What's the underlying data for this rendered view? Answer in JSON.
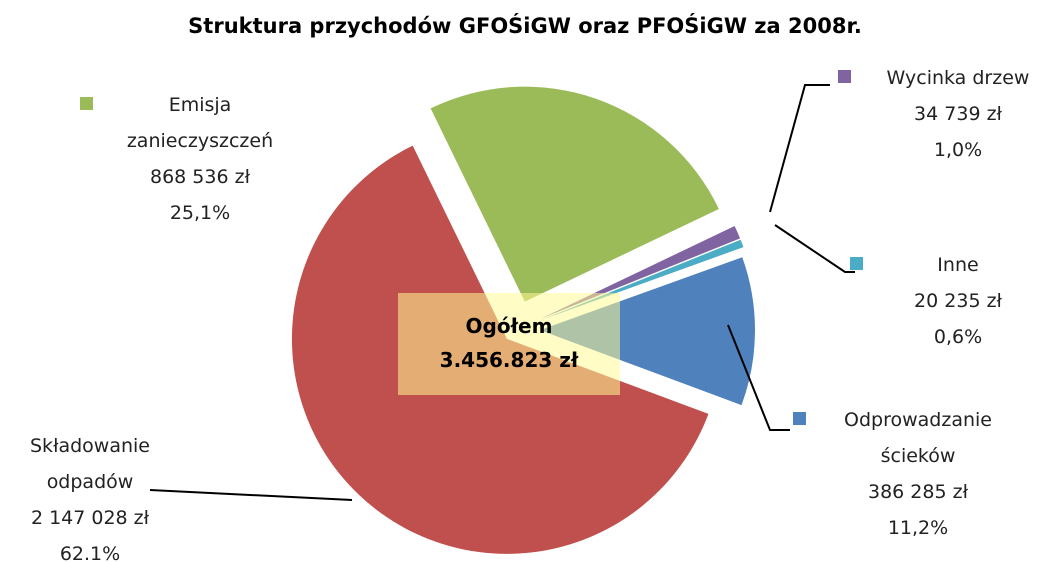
{
  "chart_data": {
    "type": "pie",
    "title": "Struktura przychodów  GFOŚiGW oraz PFOŚiGW za  2008r.",
    "categories": [
      "Emisja zanieczyszczeń",
      "Wycinka drzew",
      "Inne",
      "Odprowadzanie ścieków",
      "Składowanie odpadów"
    ],
    "values": [
      868536,
      34739,
      20235,
      386285,
      2147028
    ],
    "value_labels": [
      "868 536 zł",
      "34 739 zł",
      "20 235 zł",
      "386 285 zł",
      "2 147 028 zł"
    ],
    "percent_labels": [
      "25,1%",
      "1,0%",
      "0,6%",
      "11,2%",
      "62.1%"
    ],
    "colors": [
      "#9bbb59",
      "#8064a2",
      "#4bacc6",
      "#4f81bd",
      "#c0504d"
    ],
    "annotations": [
      "Ogółem",
      "3.456.823 zł"
    ]
  }
}
